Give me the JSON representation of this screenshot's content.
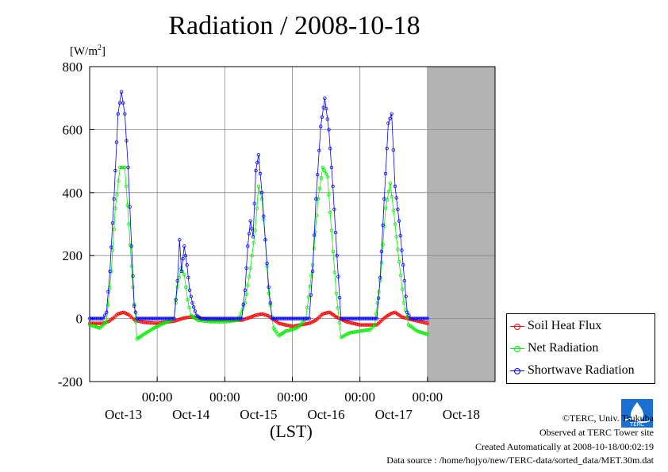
{
  "title": "Radiation / 2008-10-18",
  "yunit": "[W/m",
  "yunit_sup": "2",
  "yunit_close": "]",
  "xlabel": "(LST)",
  "colors": {
    "soil": "#ff0000",
    "net": "#00ee00",
    "shortwave": "#0000ff",
    "future_shade": "#b3b3b3"
  },
  "legend": [
    {
      "key": "soil",
      "label": "Soil Heat Flux"
    },
    {
      "key": "net",
      "label": "Net Radiation"
    },
    {
      "key": "shortwave",
      "label": "Shortwave Radiation"
    }
  ],
  "footer": {
    "copyright": "©TERC, Univ. Tsukuba",
    "site": "Observed at TERC Tower site",
    "created": "Created Automatically at 2008-10-18/00:02:19",
    "source": "Data source : /home/hojyo/new/TERC-data/sorted_data/MET.30m.dat"
  },
  "logo_text": "TERC",
  "chart_data": {
    "type": "line",
    "ylim": [
      -200,
      800
    ],
    "yticks": [
      -200,
      0,
      200,
      400,
      600,
      800
    ],
    "xlim": [
      0,
      6
    ],
    "xticks": [
      {
        "x": 1,
        "time": "00:00",
        "date": "Oct-14"
      },
      {
        "x": 2,
        "time": "00:00",
        "date": "Oct-15"
      },
      {
        "x": 3,
        "time": "00:00",
        "date": "Oct-16"
      },
      {
        "x": 4,
        "time": "00:00",
        "date": "Oct-17"
      },
      {
        "x": 5,
        "time": "00:00",
        "date": "Oct-18"
      }
    ],
    "first_date": "Oct-13",
    "data_end": 5,
    "grid": true,
    "legend_position": "right",
    "series": [
      {
        "name": "Soil Heat Flux",
        "key": "soil",
        "points": [
          [
            0,
            -15
          ],
          [
            0.2,
            -15
          ],
          [
            0.29,
            -8
          ],
          [
            0.35,
            2
          ],
          [
            0.42,
            15
          ],
          [
            0.5,
            20
          ],
          [
            0.58,
            12
          ],
          [
            0.67,
            -5
          ],
          [
            0.8,
            -12
          ],
          [
            1,
            -15
          ],
          [
            1.25,
            -8
          ],
          [
            1.4,
            2
          ],
          [
            1.5,
            5
          ],
          [
            1.6,
            2
          ],
          [
            1.75,
            -3
          ],
          [
            2,
            -5
          ],
          [
            2.25,
            -5
          ],
          [
            2.35,
            2
          ],
          [
            2.45,
            10
          ],
          [
            2.55,
            15
          ],
          [
            2.65,
            8
          ],
          [
            2.8,
            -15
          ],
          [
            3,
            -25
          ],
          [
            3.25,
            -15
          ],
          [
            3.35,
            -5
          ],
          [
            3.45,
            15
          ],
          [
            3.55,
            20
          ],
          [
            3.65,
            5
          ],
          [
            3.8,
            -10
          ],
          [
            4,
            -20
          ],
          [
            4.25,
            -20
          ],
          [
            4.35,
            0
          ],
          [
            4.45,
            15
          ],
          [
            4.52,
            20
          ],
          [
            4.62,
            5
          ],
          [
            4.8,
            -5
          ],
          [
            5,
            -15
          ]
        ]
      },
      {
        "name": "Net Radiation",
        "key": "net",
        "points": [
          [
            0,
            -20
          ],
          [
            0.15,
            -30
          ],
          [
            0.25,
            -10
          ],
          [
            0.32,
            150
          ],
          [
            0.38,
            350
          ],
          [
            0.45,
            480
          ],
          [
            0.52,
            480
          ],
          [
            0.58,
            300
          ],
          [
            0.64,
            100
          ],
          [
            0.7,
            -65
          ],
          [
            0.8,
            -50
          ],
          [
            0.95,
            -30
          ],
          [
            1.1,
            -15
          ],
          [
            1.25,
            0
          ],
          [
            1.3,
            100
          ],
          [
            1.35,
            160
          ],
          [
            1.4,
            140
          ],
          [
            1.45,
            60
          ],
          [
            1.5,
            10
          ],
          [
            1.6,
            -5
          ],
          [
            1.8,
            -10
          ],
          [
            2,
            -10
          ],
          [
            2.2,
            -5
          ],
          [
            2.3,
            50
          ],
          [
            2.38,
            160
          ],
          [
            2.45,
            280
          ],
          [
            2.5,
            420
          ],
          [
            2.55,
            380
          ],
          [
            2.6,
            250
          ],
          [
            2.65,
            80
          ],
          [
            2.72,
            -30
          ],
          [
            2.8,
            -55
          ],
          [
            2.9,
            -40
          ],
          [
            3,
            -35
          ],
          [
            3.1,
            -25
          ],
          [
            3.2,
            0
          ],
          [
            3.3,
            170
          ],
          [
            3.38,
            380
          ],
          [
            3.45,
            480
          ],
          [
            3.52,
            450
          ],
          [
            3.58,
            280
          ],
          [
            3.65,
            80
          ],
          [
            3.72,
            -60
          ],
          [
            3.85,
            -45
          ],
          [
            4,
            -40
          ],
          [
            4.15,
            -35
          ],
          [
            4.22,
            -20
          ],
          [
            4.3,
            120
          ],
          [
            4.38,
            350
          ],
          [
            4.45,
            430
          ],
          [
            4.52,
            300
          ],
          [
            4.58,
            180
          ],
          [
            4.65,
            50
          ],
          [
            4.72,
            -20
          ],
          [
            4.85,
            -40
          ],
          [
            5,
            -50
          ]
        ]
      },
      {
        "name": "Shortwave Radiation",
        "key": "shortwave",
        "points": [
          [
            0,
            0
          ],
          [
            0.2,
            0
          ],
          [
            0.25,
            20
          ],
          [
            0.3,
            150
          ],
          [
            0.36,
            380
          ],
          [
            0.42,
            650
          ],
          [
            0.47,
            720
          ],
          [
            0.52,
            650
          ],
          [
            0.57,
            480
          ],
          [
            0.62,
            230
          ],
          [
            0.66,
            40
          ],
          [
            0.7,
            0
          ],
          [
            1.25,
            0
          ],
          [
            1.3,
            120
          ],
          [
            1.33,
            250
          ],
          [
            1.36,
            150
          ],
          [
            1.4,
            230
          ],
          [
            1.44,
            170
          ],
          [
            1.48,
            90
          ],
          [
            1.52,
            50
          ],
          [
            1.58,
            10
          ],
          [
            1.65,
            0
          ],
          [
            2.25,
            0
          ],
          [
            2.3,
            90
          ],
          [
            2.34,
            230
          ],
          [
            2.38,
            310
          ],
          [
            2.42,
            260
          ],
          [
            2.46,
            470
          ],
          [
            2.5,
            520
          ],
          [
            2.55,
            400
          ],
          [
            2.6,
            250
          ],
          [
            2.65,
            100
          ],
          [
            2.7,
            0
          ],
          [
            3.25,
            0
          ],
          [
            3.3,
            150
          ],
          [
            3.35,
            380
          ],
          [
            3.42,
            610
          ],
          [
            3.48,
            700
          ],
          [
            3.54,
            600
          ],
          [
            3.6,
            420
          ],
          [
            3.66,
            200
          ],
          [
            3.72,
            0
          ],
          [
            4.25,
            0
          ],
          [
            4.3,
            130
          ],
          [
            4.36,
            380
          ],
          [
            4.42,
            620
          ],
          [
            4.47,
            650
          ],
          [
            4.52,
            420
          ],
          [
            4.58,
            310
          ],
          [
            4.64,
            170
          ],
          [
            4.7,
            20
          ],
          [
            4.75,
            0
          ],
          [
            5,
            0
          ]
        ]
      }
    ]
  }
}
